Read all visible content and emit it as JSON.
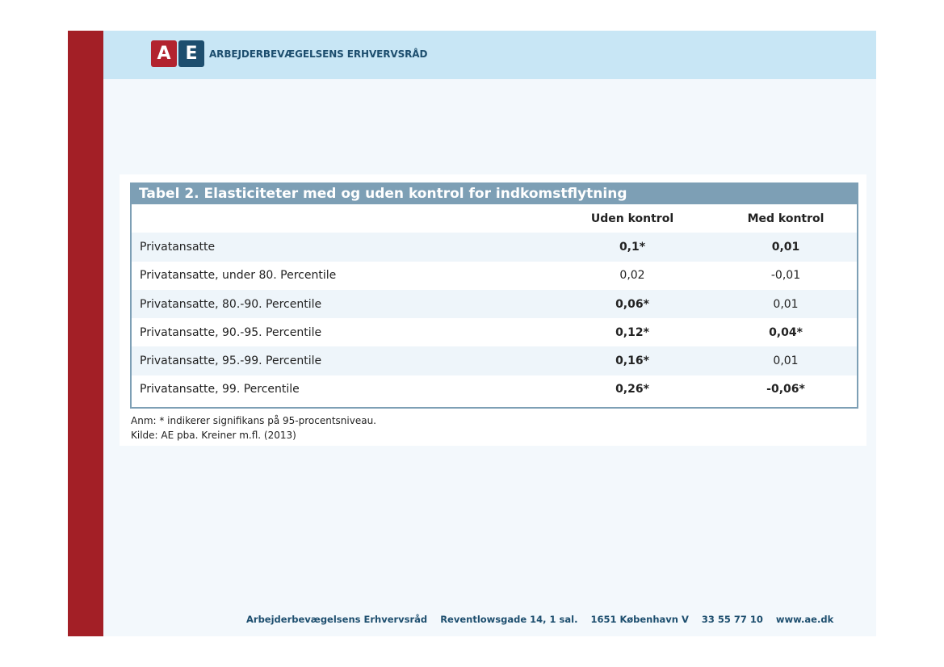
{
  "header": {
    "logo_a": "A",
    "logo_e": "E",
    "org_name": "ARBEJDERBEVÆGELSENS ERHVERVSRÅD"
  },
  "table": {
    "title": "Tabel 2. Elasticiteter med og uden kontrol for indkomstflytning",
    "columns": [
      "",
      "Uden kontrol",
      "Med kontrol"
    ],
    "rows": [
      {
        "label": "Privatansatte",
        "uden": "0,1*",
        "med": "0,01",
        "uden_bold": true,
        "med_bold": true
      },
      {
        "label": "Privatansatte, under 80. Percentile",
        "uden": "0,02",
        "med": "-0,01",
        "uden_bold": false,
        "med_bold": false
      },
      {
        "label": "Privatansatte, 80.-90. Percentile",
        "uden": "0,06*",
        "med": "0,01",
        "uden_bold": true,
        "med_bold": false
      },
      {
        "label": "Privatansatte, 90.-95. Percentile",
        "uden": "0,12*",
        "med": "0,04*",
        "uden_bold": true,
        "med_bold": true
      },
      {
        "label": "Privatansatte, 95.-99. Percentile",
        "uden": "0,16*",
        "med": "0,01",
        "uden_bold": true,
        "med_bold": false
      },
      {
        "label": "Privatansatte, 99. Percentile",
        "uden": "0,26*",
        "med": "-0,06*",
        "uden_bold": true,
        "med_bold": true
      }
    ],
    "note": "Anm: * indikerer signifikans på 95-procentsniveau.",
    "source": "Kilde: AE pba. Kreiner m.fl. (2013)"
  },
  "footer": {
    "org": "Arbejderbevægelsens Erhvervsråd",
    "address": "Reventlowsgade 14, 1 sal.",
    "city": "1651 København V",
    "phone": "33 55 77 10",
    "web": "www.ae.dk"
  },
  "colors": {
    "red_bar": "#a31f26",
    "header_bg": "#c8e6f5",
    "table_accent": "#7d9fb5",
    "brand_blue": "#1d4e6e"
  }
}
